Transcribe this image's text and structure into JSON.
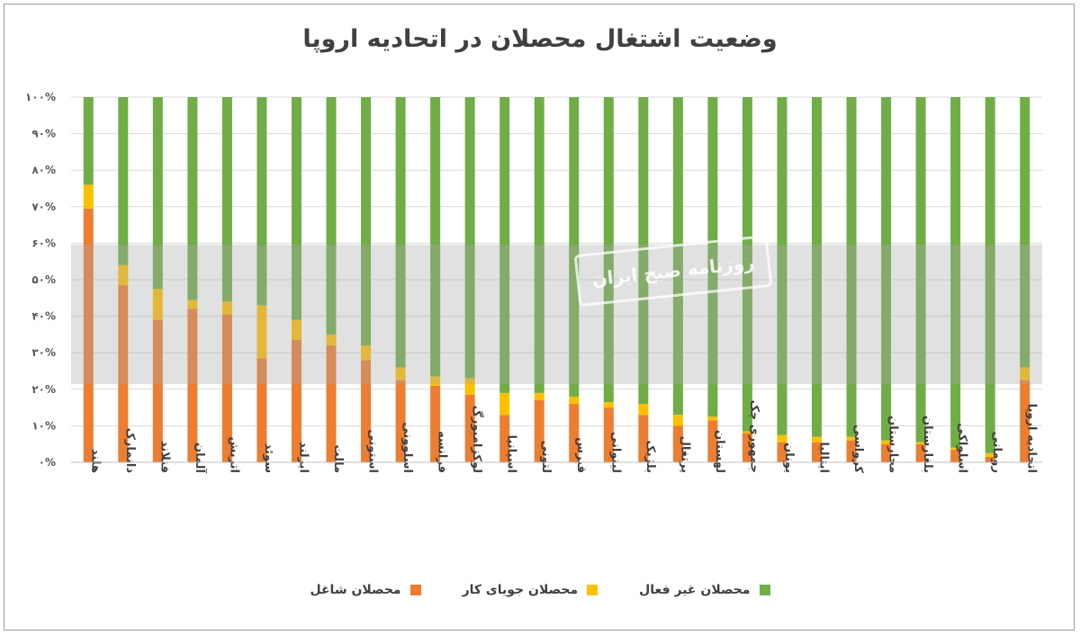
{
  "title": "وضعیت اشتغال محصلان در اتحادیه اروپا",
  "watermark_text": "روزنامه صبح ایران",
  "legend": [
    {
      "label": "محصلان غیر فعال",
      "color": "#70AD47"
    },
    {
      "label": "محصلان جویای کار",
      "color": "#FFC000"
    },
    {
      "label": "محصلان شاغل",
      "color": "#ED7D31"
    }
  ],
  "chart_data": {
    "type": "bar",
    "stacked": true,
    "y_ticks": [
      "۰%",
      "۱۰%",
      "۲۰%",
      "۳۰%",
      "۴۰%",
      "۵۰%",
      "۶۰%",
      "۷۰%",
      "۸۰%",
      "۹۰%",
      "۱۰۰%"
    ],
    "ylim": [
      0,
      100
    ],
    "categories": [
      "هلند",
      "دانمارک",
      "فنلاند",
      "آلمان",
      "اتریش",
      "سوئد",
      "ایرلند",
      "مالت",
      "استونی",
      "اسلوونی",
      "فرانسه",
      "لوکزامبورگ",
      "اسپانیا",
      "لتونی",
      "قبرس",
      "لیتوانی",
      "بلژیک",
      "پرتغال",
      "لهستان",
      "جمهوری چک",
      "یونان",
      "ایتالیا",
      "کرواسی",
      "مجارستان",
      "بلغارستان",
      "اسلواکی",
      "رومانی",
      "اتحادیه اروپا"
    ],
    "series": [
      {
        "name": "محصلان شاغل",
        "color": "#ED7D31",
        "values": [
          69.5,
          48.5,
          39,
          42,
          40.5,
          28.5,
          33.5,
          32,
          28,
          22.5,
          21,
          18.5,
          13,
          17,
          16,
          15,
          13,
          10,
          11.5,
          8,
          5.5,
          5.5,
          6,
          5,
          5,
          3.5,
          1.5,
          22.5
        ]
      },
      {
        "name": "محصلان جویای کار",
        "color": "#FFC000",
        "values": [
          6.5,
          5.5,
          8.5,
          2.5,
          3.5,
          14.5,
          5.5,
          3,
          4,
          3.5,
          2.5,
          4.5,
          6,
          2,
          2,
          1.5,
          3,
          3,
          1,
          0.5,
          2,
          1.5,
          1,
          1,
          0.5,
          0.5,
          1,
          3.5
        ]
      },
      {
        "name": "محصلان غیر فعال",
        "color": "#70AD47",
        "values": [
          24,
          46,
          52.5,
          55.5,
          56,
          57,
          61,
          65,
          68,
          74,
          76.5,
          77,
          81,
          81,
          82,
          83.5,
          84,
          87,
          87.5,
          91.5,
          92.5,
          93,
          93,
          94,
          94.5,
          96,
          97.5,
          74
        ]
      }
    ],
    "grid": true,
    "legend_position": "bottom"
  }
}
